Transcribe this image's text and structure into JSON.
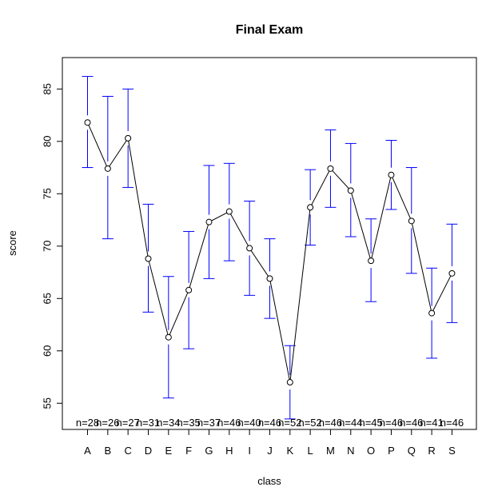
{
  "chart_data": {
    "type": "line",
    "title": "Final Exam",
    "xlabel": "class",
    "ylabel": "score",
    "categories": [
      "A",
      "B",
      "C",
      "D",
      "E",
      "F",
      "G",
      "H",
      "I",
      "J",
      "K",
      "L",
      "M",
      "N",
      "O",
      "P",
      "Q",
      "R",
      "S"
    ],
    "series": [
      {
        "values": [
          81.8,
          77.4,
          80.3,
          68.8,
          61.3,
          65.8,
          72.3,
          73.3,
          69.8,
          66.9,
          57.0,
          73.7,
          77.4,
          75.3,
          68.6,
          76.8,
          72.4,
          63.6,
          67.4
        ],
        "ci_lower": [
          77.5,
          70.7,
          75.6,
          63.7,
          55.5,
          60.2,
          66.9,
          68.6,
          65.3,
          63.1,
          53.5,
          70.1,
          73.7,
          70.9,
          64.7,
          73.5,
          67.4,
          59.3,
          62.7
        ],
        "ci_upper": [
          86.2,
          84.3,
          85.0,
          74.0,
          67.1,
          71.4,
          77.7,
          77.9,
          74.3,
          70.7,
          60.5,
          77.3,
          81.1,
          79.8,
          72.6,
          80.1,
          77.5,
          67.9,
          72.1
        ],
        "n_labels": [
          "n=28",
          "n=26",
          "n=27",
          "n=31",
          "n=34",
          "n=35",
          "n=37",
          "n=46",
          "n=40",
          "n=46",
          "n=52",
          "n=52",
          "n=46",
          "n=44",
          "n=45",
          "n=46",
          "n=46",
          "n=41",
          "n=46"
        ]
      }
    ],
    "ylim": [
      52.5,
      88.0
    ],
    "yticks": [
      55,
      60,
      65,
      70,
      75,
      80,
      85
    ],
    "grid": false,
    "colors": {
      "line": "#000000",
      "error_bars": "#0000ff",
      "points": "#000000"
    }
  }
}
